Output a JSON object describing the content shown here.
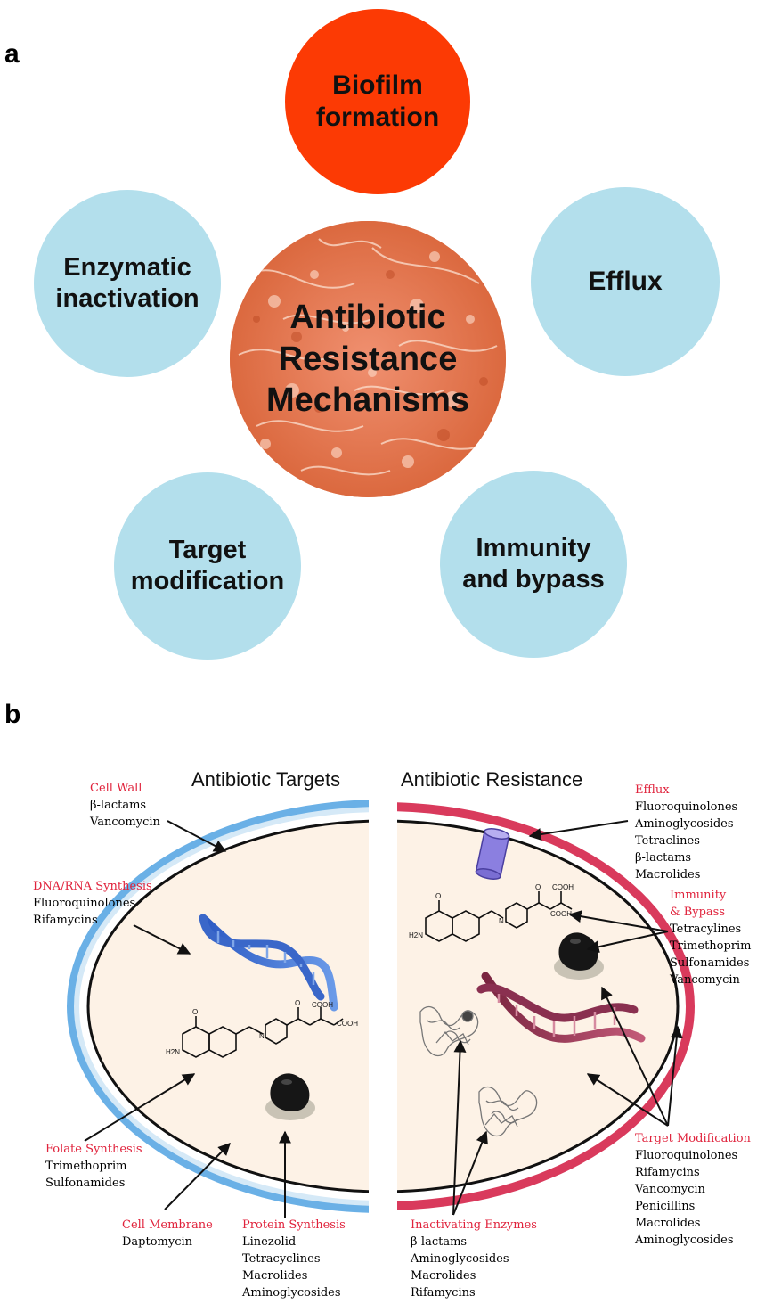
{
  "panel_a": {
    "label": "a",
    "center": "Antibiotic\nResistance\nMechanisms",
    "mechanisms": [
      {
        "text": "Biofilm\nformation",
        "color": "#fc3a04"
      },
      {
        "text": "Enzymatic\ninactivation",
        "color": "#b3dfec"
      },
      {
        "text": "Efflux",
        "color": "#b3dfec"
      },
      {
        "text": "Target\nmodification",
        "color": "#b3dfec"
      },
      {
        "text": "Immunity\nand bypass",
        "color": "#b3dfec"
      }
    ]
  },
  "panel_b": {
    "label": "b",
    "targets_title": "Antibiotic Targets",
    "resistance_title": "Antibiotic Resistance",
    "targets": {
      "cell_wall": {
        "heading": "Cell Wall",
        "items": [
          "β-lactams",
          "Vancomycin"
        ]
      },
      "dna_rna": {
        "heading": "DNA/RNA Synthesis",
        "items": [
          "Fluoroquinolones",
          "Rifamycins"
        ]
      },
      "folate": {
        "heading": "Folate Synthesis",
        "items": [
          "Trimethoprim",
          "Sulfonamides"
        ]
      },
      "membrane": {
        "heading": "Cell Membrane",
        "items": [
          "Daptomycin"
        ]
      },
      "protein": {
        "heading": "Protein Synthesis",
        "items": [
          "Linezolid",
          "Tetracyclines",
          "Macrolides",
          "Aminoglycosides"
        ]
      }
    },
    "resistance": {
      "efflux": {
        "heading": "Efflux",
        "items": [
          "Fluoroquinolones",
          "Aminoglycosides",
          "Tetraclines",
          "β-lactams",
          "Macrolides"
        ]
      },
      "immunity": {
        "heading_lines": [
          "Immunity",
          "& Bypass"
        ],
        "items": [
          "Tetracylines",
          "Trimethoprim",
          "Sulfonamides",
          "Vancomycin"
        ]
      },
      "target_mod": {
        "heading": "Target Modification",
        "items": [
          "Fluoroquinolones",
          "Rifamycins",
          "Vancomycin",
          "Penicillins",
          "Macrolides",
          "Aminoglycosides"
        ]
      },
      "enzymes": {
        "heading": "Inactivating Enzymes",
        "items": [
          "β-lactams",
          "Aminoglycosides",
          "Macrolides",
          "Rifamycins"
        ]
      }
    },
    "molecule_labels": {
      "cooh": "COOH",
      "h2n": "H2N",
      "h": "H",
      "o": "O",
      "n": "N"
    },
    "colors": {
      "heading_red": "#e0233c",
      "wall_blue": "#6ab0e6",
      "wall_red": "#d93a5c",
      "cytoplasm": "#fdf2e6",
      "efflux_pump": "#8b7fe0"
    }
  }
}
